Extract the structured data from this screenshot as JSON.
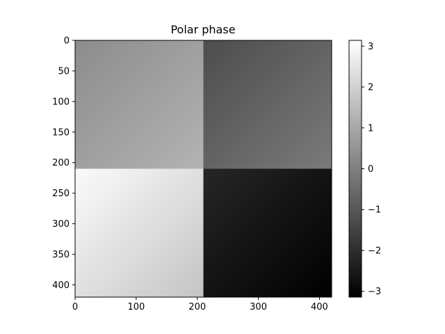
{
  "chart_data": {
    "type": "heatmap",
    "title": "Polar phase",
    "xlabel": "",
    "ylabel": "",
    "x_range": [
      0,
      420
    ],
    "y_range": [
      0,
      420
    ],
    "y_inverted": true,
    "grid": false,
    "x_ticks": [
      0,
      100,
      200,
      300,
      400
    ],
    "y_ticks": [
      0,
      50,
      100,
      150,
      200,
      250,
      300,
      350,
      400
    ],
    "colormap": "gray",
    "value_range": [
      -3.14159,
      3.14159
    ],
    "colorbar_ticks": [
      {
        "value": 3,
        "label": "3"
      },
      {
        "value": 2,
        "label": "2"
      },
      {
        "value": 1,
        "label": "1"
      },
      {
        "value": 0,
        "label": "0"
      },
      {
        "value": -1,
        "label": "−1"
      },
      {
        "value": -2,
        "label": "−2"
      },
      {
        "value": -3,
        "label": "−3"
      }
    ],
    "quadrants": [
      {
        "name": "top-left",
        "x": [
          0,
          210
        ],
        "y": [
          0,
          210
        ],
        "value_corner_far": 0.5,
        "value_corner_near": 1.3
      },
      {
        "name": "top-right",
        "x": [
          210,
          420
        ],
        "y": [
          0,
          210
        ],
        "value_corner_far": -0.6,
        "value_corner_near": 0.0
      },
      {
        "name": "bottom-left",
        "x": [
          0,
          210
        ],
        "y": [
          210,
          420
        ],
        "value_corner_far": 1.6,
        "value_corner_near": 3.1
      },
      {
        "name": "bottom-right",
        "x": [
          210,
          420
        ],
        "y": [
          210,
          420
        ],
        "value_corner_far": -1.8,
        "value_corner_near": -3.1
      }
    ]
  },
  "colors": {
    "colormap_low": "#000000",
    "colormap_high": "#ffffff"
  }
}
